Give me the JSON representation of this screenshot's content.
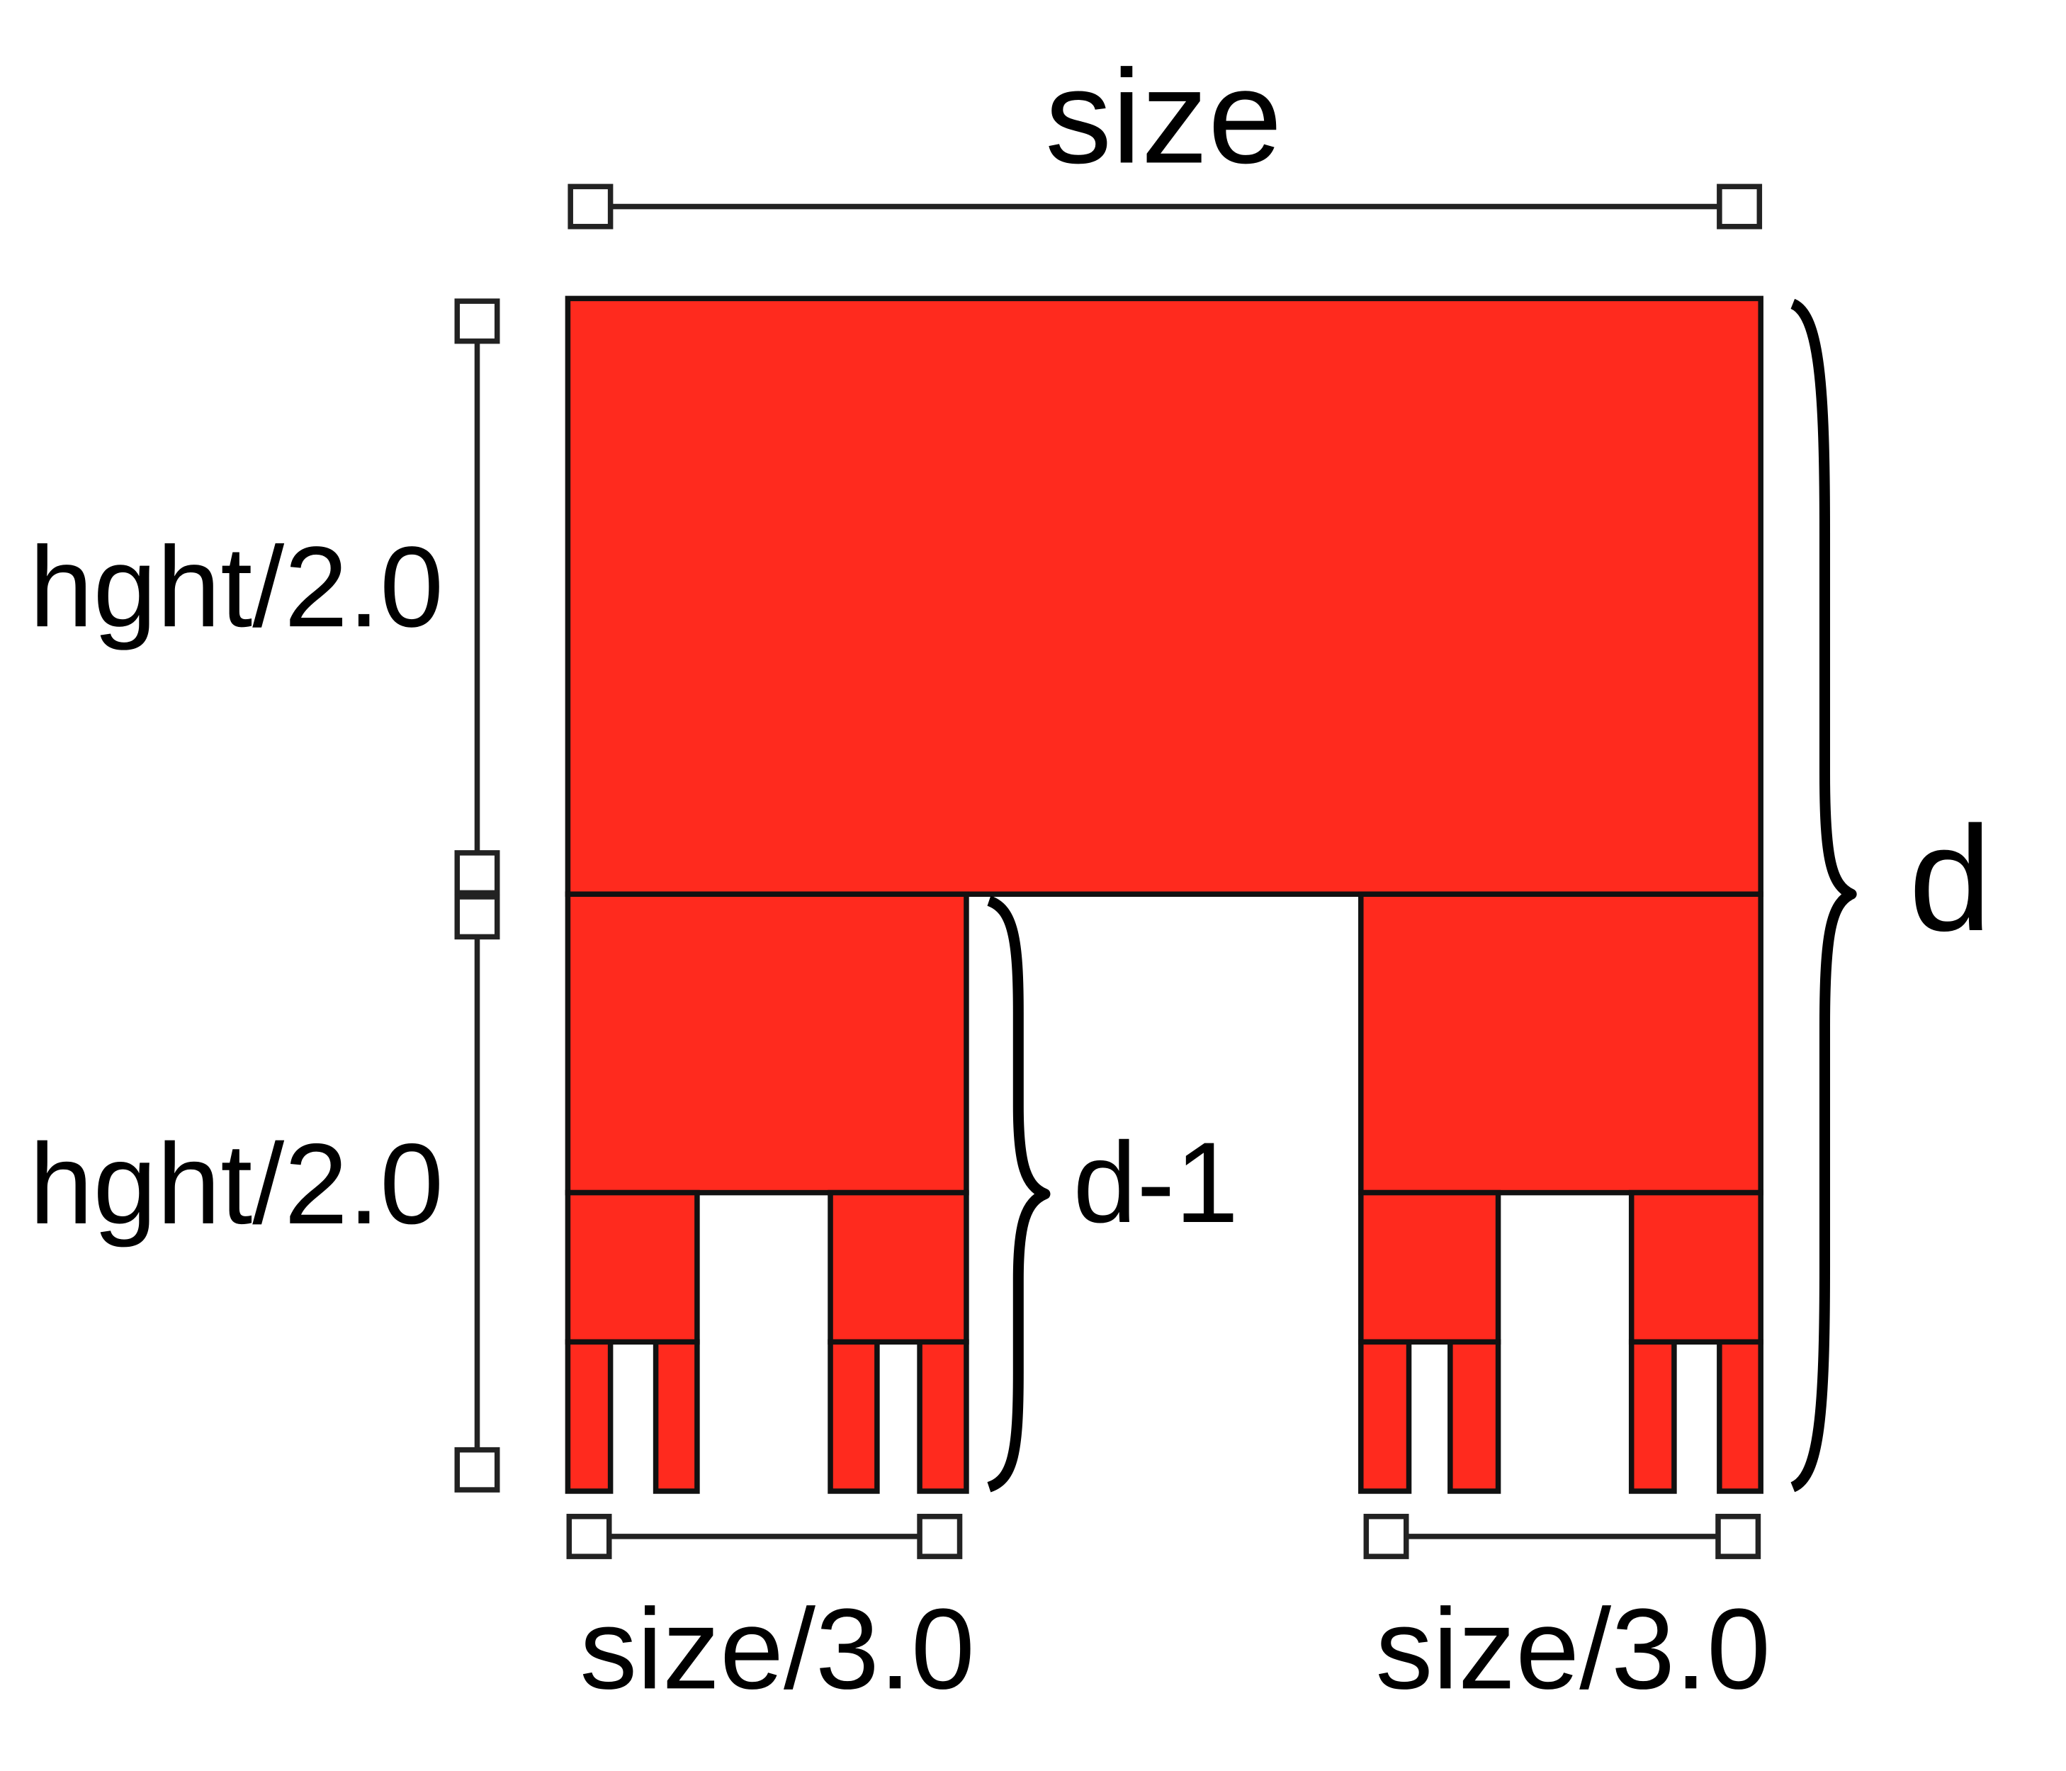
{
  "labels": {
    "top_width": "size",
    "left_upper": "hght/2.0",
    "left_lower": "hght/2.0",
    "bottom_left": "size/3.0",
    "bottom_right": "size/3.0",
    "inner_brace": "d-1",
    "outer_brace": "d"
  },
  "colors": {
    "block_fill": "#ff2a1e",
    "outline": "#111111"
  }
}
